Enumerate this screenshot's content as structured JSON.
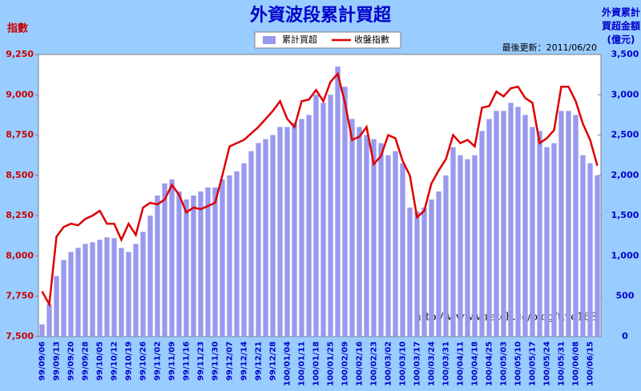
{
  "chart_data": {
    "type": "bar_line",
    "title": "外資波段累計買超",
    "y_label": "指數",
    "y2_label": [
      "外資累計",
      "買超金額",
      "(億元)"
    ],
    "update_note": "最後更新：2011/06/20",
    "watermark": "http://www.wretch.cc/blog/tivo168",
    "categories": [
      "99/09/06",
      null,
      "99/09/13",
      null,
      "99/09/20",
      null,
      "99/09/28",
      null,
      "99/10/05",
      null,
      "99/10/12",
      null,
      "99/10/19",
      null,
      "99/10/26",
      null,
      "99/11/02",
      null,
      "99/11/09",
      null,
      "99/11/16",
      null,
      "99/11/23",
      null,
      "99/11/30",
      null,
      "99/12/07",
      null,
      "99/12/14",
      null,
      "99/12/21",
      null,
      "99/12/28",
      null,
      "100/01/04",
      null,
      "100/01/11",
      null,
      "100/01/18",
      null,
      "100/01/25",
      null,
      "100/02/09",
      null,
      "100/02/16",
      null,
      "100/02/23",
      null,
      "100/03/02",
      null,
      "100/03/10",
      null,
      "100/03/17",
      null,
      "100/03/24",
      null,
      "100/03/31",
      null,
      "100/04/11",
      null,
      "100/04/18",
      null,
      "100/04/25",
      null,
      "100/05/03",
      null,
      "100/05/10",
      null,
      "100/05/17",
      null,
      "100/05/24",
      null,
      "100/05/31",
      null,
      "100/06/08",
      null,
      "100/06/15",
      null
    ],
    "series": [
      {
        "name": "累計買超",
        "color": "#9999ee",
        "axis": "y2",
        "kind": "bar",
        "values": [
          150,
          400,
          750,
          950,
          1050,
          1100,
          1150,
          1170,
          1200,
          1230,
          1220,
          1100,
          1050,
          1150,
          1300,
          1500,
          1750,
          1900,
          1950,
          1800,
          1700,
          1750,
          1800,
          1850,
          1850,
          1950,
          2000,
          2050,
          2150,
          2300,
          2400,
          2450,
          2500,
          2600,
          2600,
          2650,
          2700,
          2750,
          3000,
          2900,
          3000,
          3350,
          3100,
          2700,
          2600,
          2500,
          2450,
          2400,
          2250,
          2300,
          2150,
          1600,
          1550,
          1600,
          1700,
          1800,
          2000,
          2350,
          2250,
          2200,
          2250,
          2550,
          2700,
          2800,
          2800,
          2900,
          2850,
          2750,
          2600,
          2550,
          2350,
          2400,
          2800,
          2800,
          2750,
          2250,
          2150,
          2000
        ]
      },
      {
        "name": "收盤指數",
        "color": "#dd0000",
        "axis": "y",
        "kind": "line",
        "values": [
          7780,
          7700,
          8120,
          8180,
          8200,
          8190,
          8230,
          8250,
          8280,
          8200,
          8200,
          8100,
          8200,
          8130,
          8300,
          8330,
          8320,
          8350,
          8440,
          8380,
          8270,
          8300,
          8290,
          8310,
          8330,
          8500,
          8680,
          8700,
          8720,
          8760,
          8800,
          8850,
          8900,
          8960,
          8850,
          8800,
          8960,
          8970,
          9030,
          8960,
          9080,
          9130,
          8950,
          8720,
          8740,
          8800,
          8570,
          8620,
          8750,
          8730,
          8590,
          8500,
          8240,
          8280,
          8450,
          8530,
          8600,
          8750,
          8700,
          8720,
          8680,
          8920,
          8930,
          9020,
          8990,
          9040,
          9050,
          8980,
          8950,
          8700,
          8730,
          8780,
          9050,
          9050,
          8960,
          8820,
          8720,
          8560
        ]
      }
    ],
    "ylim": [
      7500,
      9250
    ],
    "yticks": [
      {
        "value": 7500,
        "label": "7,500"
      },
      {
        "value": 7750,
        "label": "7,750"
      },
      {
        "value": 8000,
        "label": "8,000"
      },
      {
        "value": 8250,
        "label": "8,250"
      },
      {
        "value": 8500,
        "label": "8,500"
      },
      {
        "value": 8750,
        "label": "8,750"
      },
      {
        "value": 9000,
        "label": "9,000"
      },
      {
        "value": 9250,
        "label": "9,250"
      }
    ],
    "y2lim": [
      0,
      3500
    ],
    "y2ticks": [
      0,
      500,
      {
        "value": 1000,
        "label": "1,000"
      },
      {
        "value": 1500,
        "label": "1,500"
      },
      {
        "value": 2000,
        "label": "2,000"
      },
      {
        "value": 2500,
        "label": "2,500"
      },
      {
        "value": 3000,
        "label": "3,000"
      },
      {
        "value": 3500,
        "label": "3,500"
      }
    ],
    "grid": false
  }
}
